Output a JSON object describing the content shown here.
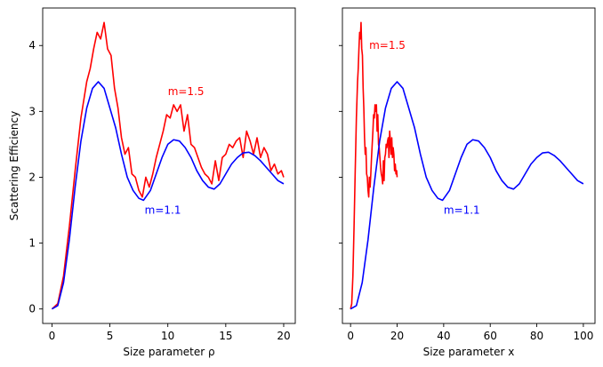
{
  "chart_data": [
    {
      "type": "line",
      "xlabel": "Size parameter ρ",
      "ylabel": "Scattering Efficiency",
      "xlim": [
        -0.8,
        21.0
      ],
      "ylim": [
        -0.22,
        4.57
      ],
      "xticks": [
        0,
        5,
        10,
        15,
        20
      ],
      "yticks": [
        0,
        1,
        2,
        3,
        4
      ],
      "grid": false,
      "series": [
        {
          "color": "#ff0000",
          "x": [
            0,
            0.5,
            1,
            1.5,
            2,
            2.5,
            3,
            3.3,
            3.6,
            3.9,
            4.2,
            4.5,
            4.8,
            5.1,
            5.4,
            5.7,
            6,
            6.3,
            6.6,
            6.9,
            7.2,
            7.5,
            7.8,
            8.1,
            8.4,
            8.7,
            9,
            9.3,
            9.6,
            9.9,
            10.2,
            10.5,
            10.8,
            11.1,
            11.4,
            11.7,
            12,
            12.3,
            12.6,
            12.9,
            13.2,
            13.5,
            13.8,
            14.1,
            14.4,
            14.7,
            15,
            15.3,
            15.6,
            15.9,
            16.2,
            16.5,
            16.8,
            17.1,
            17.4,
            17.7,
            18,
            18.3,
            18.6,
            18.9,
            19.2,
            19.5,
            19.8,
            20
          ],
          "y": [
            0,
            0.08,
            0.5,
            1.25,
            2.1,
            2.9,
            3.45,
            3.65,
            3.95,
            4.2,
            4.1,
            4.35,
            3.95,
            3.85,
            3.35,
            3.05,
            2.6,
            2.35,
            2.45,
            2.05,
            2.0,
            1.8,
            1.7,
            2.0,
            1.85,
            2.05,
            2.3,
            2.5,
            2.7,
            2.95,
            2.9,
            3.1,
            3.0,
            3.1,
            2.7,
            2.95,
            2.5,
            2.45,
            2.3,
            2.15,
            2.05,
            2.0,
            1.9,
            2.25,
            1.95,
            2.3,
            2.35,
            2.5,
            2.45,
            2.55,
            2.6,
            2.3,
            2.7,
            2.55,
            2.35,
            2.6,
            2.3,
            2.45,
            2.35,
            2.1,
            2.2,
            2.05,
            2.1,
            2.0
          ]
        },
        {
          "color": "#0000ff",
          "x": [
            0,
            0.5,
            1,
            1.5,
            2,
            2.5,
            3,
            3.5,
            4,
            4.5,
            5,
            5.5,
            6,
            6.5,
            7,
            7.5,
            7.9,
            8.5,
            9,
            9.5,
            10,
            10.5,
            11,
            11.5,
            12,
            12.5,
            13,
            13.5,
            14,
            14.5,
            15,
            15.5,
            16,
            16.5,
            17,
            17.5,
            18,
            18.5,
            19,
            19.5,
            20
          ],
          "y": [
            0,
            0.05,
            0.4,
            1.05,
            1.85,
            2.55,
            3.05,
            3.35,
            3.45,
            3.35,
            3.05,
            2.75,
            2.35,
            2.0,
            1.8,
            1.68,
            1.65,
            1.8,
            2.05,
            2.3,
            2.5,
            2.57,
            2.55,
            2.45,
            2.3,
            2.1,
            1.95,
            1.85,
            1.82,
            1.9,
            2.05,
            2.2,
            2.3,
            2.37,
            2.38,
            2.33,
            2.25,
            2.15,
            2.05,
            1.95,
            1.9
          ]
        }
      ],
      "annotations": [
        {
          "text": "m=1.5",
          "x": 10.0,
          "y": 3.3,
          "color": "#ff0000"
        },
        {
          "text": "m=1.1",
          "x": 8.0,
          "y": 1.5,
          "color": "#0000ff"
        }
      ]
    },
    {
      "type": "line",
      "xlabel": "Size parameter x",
      "ylabel": "",
      "xlim": [
        -3.5,
        105.0
      ],
      "ylim": [
        -0.22,
        4.57
      ],
      "xticks": [
        0,
        20,
        40,
        60,
        80,
        100
      ],
      "yticks": [
        0,
        1,
        2,
        3,
        4
      ],
      "grid": false,
      "series": [
        {
          "color": "#ff0000",
          "x": [
            0,
            0.5,
            1,
            1.5,
            2,
            2.5,
            3,
            3.3,
            3.6,
            3.9,
            4.2,
            4.5,
            4.8,
            5.1,
            5.4,
            5.7,
            6,
            6.3,
            6.6,
            6.9,
            7.2,
            7.5,
            7.8,
            8.1,
            8.4,
            8.7,
            9,
            9.3,
            9.6,
            9.9,
            10.2,
            10.5,
            10.8,
            11.1,
            11.4,
            11.7,
            12,
            12.3,
            12.6,
            12.9,
            13.2,
            13.5,
            13.8,
            14.1,
            14.4,
            14.7,
            15,
            15.3,
            15.6,
            15.9,
            16.2,
            16.5,
            16.8,
            17.1,
            17.4,
            17.7,
            18,
            18.3,
            18.6,
            18.9,
            19.2,
            19.5,
            19.8,
            20
          ],
          "y": [
            0,
            0.08,
            0.5,
            1.25,
            2.1,
            2.9,
            3.45,
            3.65,
            3.95,
            4.2,
            4.1,
            4.35,
            3.95,
            3.85,
            3.35,
            3.05,
            2.6,
            2.35,
            2.45,
            2.05,
            2.0,
            1.8,
            1.7,
            2.0,
            1.85,
            2.05,
            2.3,
            2.5,
            2.7,
            2.95,
            2.9,
            3.1,
            3.0,
            3.1,
            2.7,
            2.95,
            2.5,
            2.45,
            2.3,
            2.15,
            2.05,
            2.0,
            1.9,
            2.25,
            1.95,
            2.3,
            2.35,
            2.5,
            2.45,
            2.55,
            2.6,
            2.3,
            2.7,
            2.55,
            2.35,
            2.6,
            2.3,
            2.45,
            2.35,
            2.1,
            2.2,
            2.05,
            2.1,
            2.0
          ]
        },
        {
          "color": "#0000ff",
          "x": [
            0,
            2.5,
            5,
            7.5,
            10,
            12.5,
            15,
            17.5,
            20,
            22.5,
            25,
            27.5,
            30,
            32.5,
            35,
            37.5,
            39.5,
            42.5,
            45,
            47.5,
            50,
            52.5,
            55,
            57.5,
            60,
            62.5,
            65,
            67.5,
            70,
            72.5,
            75,
            77.5,
            80,
            82.5,
            85,
            87.5,
            90,
            92.5,
            95,
            97.5,
            100
          ],
          "y": [
            0,
            0.05,
            0.4,
            1.05,
            1.85,
            2.55,
            3.05,
            3.35,
            3.45,
            3.35,
            3.05,
            2.75,
            2.35,
            2.0,
            1.8,
            1.68,
            1.65,
            1.8,
            2.05,
            2.3,
            2.5,
            2.57,
            2.55,
            2.45,
            2.3,
            2.1,
            1.95,
            1.85,
            1.82,
            1.9,
            2.05,
            2.2,
            2.3,
            2.37,
            2.38,
            2.33,
            2.25,
            2.15,
            2.05,
            1.95,
            1.9
          ]
        }
      ],
      "annotations": [
        {
          "text": "m=1.5",
          "x": 8.0,
          "y": 4.0,
          "color": "#ff0000"
        },
        {
          "text": "m=1.1",
          "x": 40.0,
          "y": 1.5,
          "color": "#0000ff"
        }
      ]
    }
  ]
}
